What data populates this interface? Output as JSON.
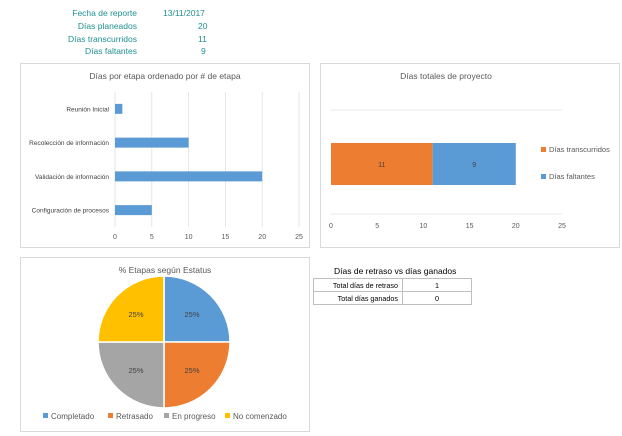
{
  "header": {
    "rows": [
      {
        "label": "Fecha de reporte",
        "value": "13/11/2017"
      },
      {
        "label": "Días planeados",
        "value": "20"
      },
      {
        "label": "Días transcurridos",
        "value": "11"
      },
      {
        "label": "Días faltantes",
        "value": "9"
      }
    ]
  },
  "chart_data": [
    {
      "type": "bar",
      "orientation": "horizontal",
      "title": "Días por etapa ordenado por # de etapa",
      "categories": [
        "Reunión Inicial",
        "Recolección de información",
        "Validación de información",
        "Configuración de procesos"
      ],
      "values": [
        1,
        10,
        20,
        5
      ],
      "xticks": [
        "0",
        "5",
        "10",
        "15",
        "20",
        "25"
      ],
      "xlim": [
        0,
        25
      ],
      "color": "#5b9bd5"
    },
    {
      "type": "bar",
      "orientation": "horizontal",
      "stacked": true,
      "title": "Días totales de proyecto",
      "series": [
        {
          "name": "Días transcurridos",
          "values": [
            11
          ],
          "color": "#ed7d31"
        },
        {
          "name": "Días faltantes",
          "values": [
            9
          ],
          "color": "#5b9bd5"
        }
      ],
      "xticks": [
        "0",
        "5",
        "10",
        "15",
        "20",
        "25"
      ],
      "xlim": [
        0,
        25
      ],
      "legend": "right"
    },
    {
      "type": "pie",
      "title": "% Etapas según Estatus",
      "slices": [
        {
          "name": "Completado",
          "value": 25,
          "label": "25%",
          "color": "#5b9bd5"
        },
        {
          "name": "Retrasado",
          "value": 25,
          "label": "25%",
          "color": "#ed7d31"
        },
        {
          "name": "En progreso",
          "value": 25,
          "label": "25%",
          "color": "#a5a5a5"
        },
        {
          "name": "No comenzado",
          "value": 25,
          "label": "25%",
          "color": "#ffc000"
        }
      ],
      "legend": "bottom"
    }
  ],
  "delay_table": {
    "title": "Días de retraso vs días ganados",
    "rows": [
      {
        "label": "Total días de retraso",
        "value": "1"
      },
      {
        "label": "Total días ganados",
        "value": "0"
      }
    ]
  }
}
